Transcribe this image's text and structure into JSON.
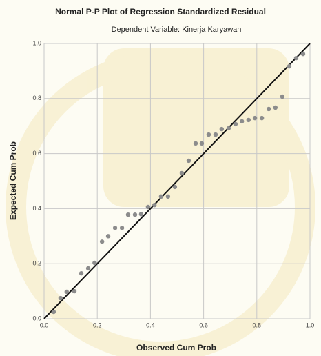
{
  "chart_data": {
    "type": "scatter",
    "title": "Normal P-P Plot of Regression Standardized Residual",
    "subtitle": "Dependent Variable: Kinerja Karyawan",
    "x_label": "Observed Cum Prob",
    "y_label": "Expected Cum Prob",
    "color": "#8c8c8c",
    "grid": true,
    "xlim": [
      0,
      1
    ],
    "ylim": [
      0,
      1
    ],
    "xticks": [
      {
        "value": 0,
        "label": "0.0"
      },
      {
        "value": 0.2,
        "label": "0.2"
      },
      {
        "value": 0.4,
        "label": "0.4"
      },
      {
        "value": 0.6,
        "label": "0.6"
      },
      {
        "value": 0.8,
        "label": "0.8"
      },
      {
        "value": 1,
        "label": "1.0"
      }
    ],
    "yticks": [
      {
        "value": 0,
        "label": "0.0"
      },
      {
        "value": 0.2,
        "label": "0.2"
      },
      {
        "value": 0.4,
        "label": "0.4"
      },
      {
        "value": 0.6,
        "label": "0.6"
      },
      {
        "value": 0.8,
        "label": "0.8"
      },
      {
        "value": 1,
        "label": "1.0"
      }
    ],
    "x": [
      0.036,
      0.062,
      0.085,
      0.114,
      0.14,
      0.166,
      0.19,
      0.218,
      0.241,
      0.267,
      0.293,
      0.316,
      0.342,
      0.365,
      0.391,
      0.415,
      0.44,
      0.466,
      0.492,
      0.518,
      0.544,
      0.57,
      0.593,
      0.619,
      0.645,
      0.668,
      0.694,
      0.72,
      0.744,
      0.769,
      0.793,
      0.819,
      0.845,
      0.87,
      0.896,
      0.922,
      0.948,
      0.974
    ],
    "values": [
      0.025,
      0.075,
      0.098,
      0.1,
      0.165,
      0.183,
      0.203,
      0.28,
      0.3,
      0.33,
      0.33,
      0.378,
      0.378,
      0.38,
      0.406,
      0.413,
      0.444,
      0.444,
      0.479,
      0.529,
      0.574,
      0.637,
      0.637,
      0.669,
      0.669,
      0.689,
      0.692,
      0.707,
      0.717,
      0.722,
      0.729,
      0.729,
      0.762,
      0.767,
      0.807,
      0.917,
      0.947,
      0.962
    ]
  }
}
